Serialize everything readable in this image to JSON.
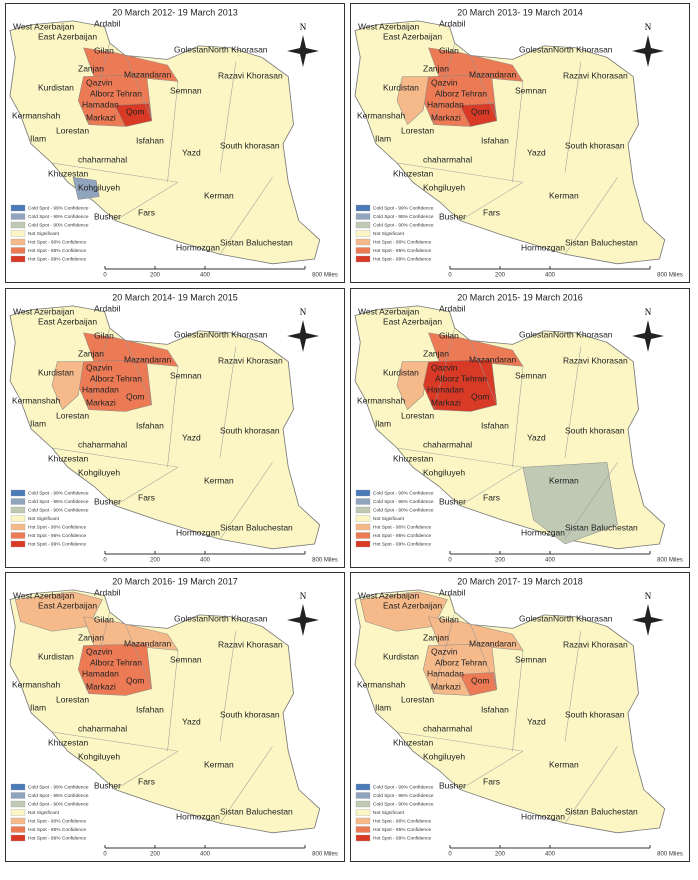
{
  "panels": [
    {
      "title": "20 March 2012- 19 March 2013"
    },
    {
      "title": "20 March 2013- 19 March 2014"
    },
    {
      "title": "20 March 2014- 19 March 2015"
    },
    {
      "title": "20 March 2015- 19 March 2016"
    },
    {
      "title": "20 March 2016- 19 March 2017"
    },
    {
      "title": "20 March 2017- 19 March 2018"
    }
  ],
  "provinces": [
    "West Azerbaijan",
    "Ardabil",
    "East Azerbaijan",
    "Gilan",
    "Golestan",
    "North Khorasan",
    "Zanjan",
    "Mazandaran",
    "Razavi Khorasan",
    "Qazvin",
    "Kurdistan",
    "Alborz",
    "Tehran",
    "Semnan",
    "Hamadan",
    "Qom",
    "Kermanshah",
    "Markazi",
    "Lorestan",
    "Ilam",
    "Isfahan",
    "South khorasan",
    "Yazd",
    "chaharmahal",
    "Khuzestan",
    "Kohgiluyeh",
    "Kerman",
    "Busher",
    "Fars",
    "Sistan Baluchestan",
    "Hormozgan"
  ],
  "legend": [
    "Cold Spot - 99% Confidence",
    "Cold Spot - 95% Confidence",
    "Cold Spot - 90% Confidence",
    "Not Significant",
    "Hot Spot - 90% Confidence",
    "Hot Spot - 95% Confidence",
    "Hot Spot - 99% Confidence"
  ],
  "scale": [
    "0",
    "200",
    "400",
    "800 Miles"
  ],
  "north": "N"
}
